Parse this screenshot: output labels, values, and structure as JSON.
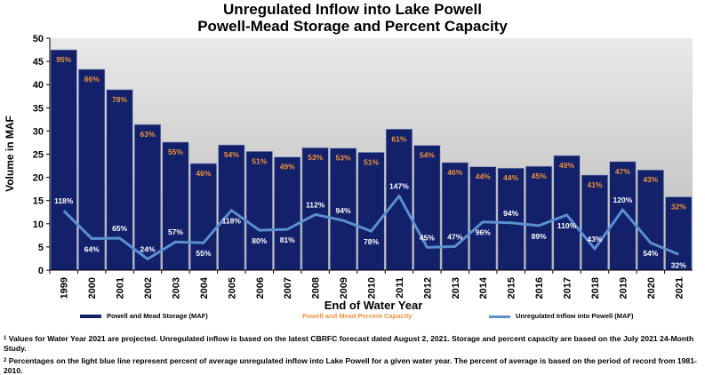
{
  "chart_data": {
    "type": "bar",
    "title": "Unregulated Inflow into Lake Powell",
    "subtitle": "Powell-Mead Storage and Percent Capacity",
    "xlabel": "End of Water Year",
    "ylabel": "Volume in MAF",
    "ylim": [
      0,
      50
    ],
    "yticks": [
      0,
      5,
      10,
      15,
      20,
      25,
      30,
      35,
      40,
      45,
      50
    ],
    "categories": [
      "1999",
      "2000",
      "2001",
      "2002",
      "2003",
      "2004",
      "2005",
      "2006",
      "2007",
      "2008",
      "2009",
      "2010",
      "2011",
      "2012",
      "2013",
      "2014",
      "2015",
      "2016",
      "2017",
      "2018",
      "2019",
      "2020",
      "2021"
    ],
    "series": [
      {
        "name": "Powell and Mead Storage (MAF)",
        "type": "bar",
        "color": "#13216b",
        "values": [
          47.5,
          43.3,
          38.9,
          31.4,
          27.6,
          23.0,
          27.0,
          25.6,
          24.4,
          26.4,
          26.3,
          25.4,
          30.4,
          26.9,
          23.2,
          22.3,
          22.0,
          22.4,
          24.7,
          20.5,
          23.4,
          21.6,
          15.8
        ],
        "labels": [
          "95%",
          "86%",
          "78%",
          "63%",
          "55%",
          "46%",
          "54%",
          "51%",
          "49%",
          "53%",
          "53%",
          "51%",
          "61%",
          "54%",
          "46%",
          "44%",
          "44%",
          "45%",
          "49%",
          "41%",
          "47%",
          "43%",
          "32%"
        ]
      },
      {
        "name": "Powell and Mead Percent Capacity",
        "type": "label",
        "color": "#f0923a"
      },
      {
        "name": "Unregulated Inflow into Powell  (MAF)",
        "type": "line",
        "color": "#5b8fd0",
        "values": [
          12.8,
          6.8,
          6.9,
          2.4,
          6.1,
          5.9,
          12.9,
          8.6,
          8.8,
          12.0,
          10.7,
          8.4,
          16.0,
          4.9,
          5.1,
          10.4,
          10.2,
          9.6,
          11.9,
          4.6,
          13.0,
          5.9,
          3.4
        ],
        "labels": [
          "118%",
          "64%",
          "65%",
          "24%",
          "57%",
          "55%",
          "118%",
          "80%",
          "81%",
          "112%",
          "94%",
          "78%",
          "147%",
          "45%",
          "47%",
          "96%",
          "94%",
          "89%",
          "110%",
          "43%",
          "120%",
          "54%",
          "32%"
        ]
      }
    ],
    "grid": false,
    "legend_position": "bottom"
  },
  "notes": {
    "note1_marker": "1",
    "note1": "Values for Water Year 2021 are projected. Unregulated inflow is based on the latest CBRFC forecast dated August 2, 2021. Storage and percent capacity are based on the July 2021 24-Month Study.",
    "note2_marker": "2",
    "note2": "Percentages on the light blue line represent percent of average unregulated inflow into Lake Powell for a given water year. The percent of average is based on the period of record from 1981-2010."
  }
}
